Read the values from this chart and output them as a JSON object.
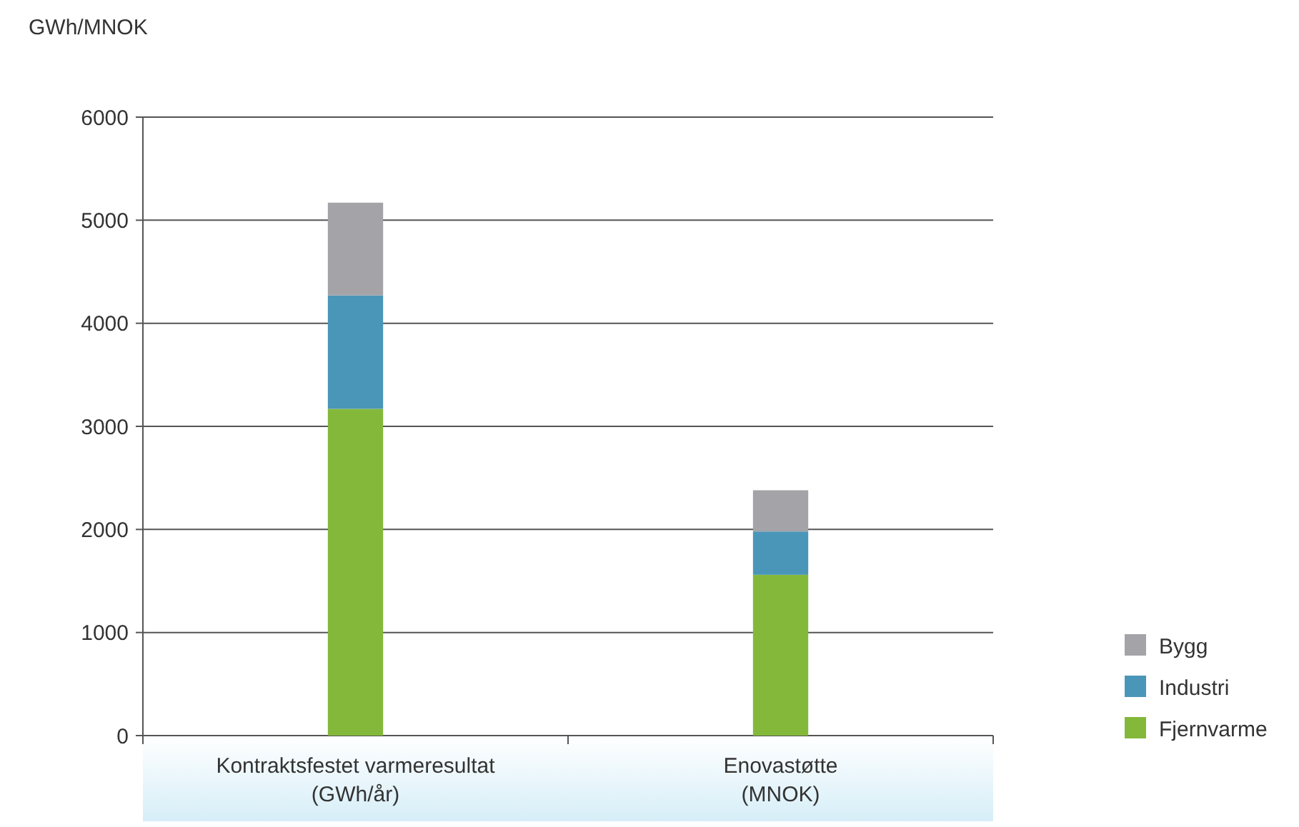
{
  "chart_data": {
    "type": "bar",
    "ylabel": "GWh/MNOK",
    "categories": [
      "Kontraktsfestet varmeresultat\n(GWh/år)",
      "Enovastøtte\n(MNOK)"
    ],
    "stacked": true,
    "series": [
      {
        "name": "Fjernvarme",
        "color": "#84b83a",
        "values": [
          3170,
          1560
        ]
      },
      {
        "name": "Industri",
        "color": "#4a96b8",
        "values": [
          1100,
          420
        ]
      },
      {
        "name": "Bygg",
        "color": "#a3a3a8",
        "values": [
          900,
          400
        ]
      }
    ],
    "ylim": [
      0,
      6000
    ],
    "yticks": [
      0,
      1000,
      2000,
      3000,
      4000,
      5000,
      6000
    ],
    "grid": "y",
    "legend": "bottom right"
  }
}
